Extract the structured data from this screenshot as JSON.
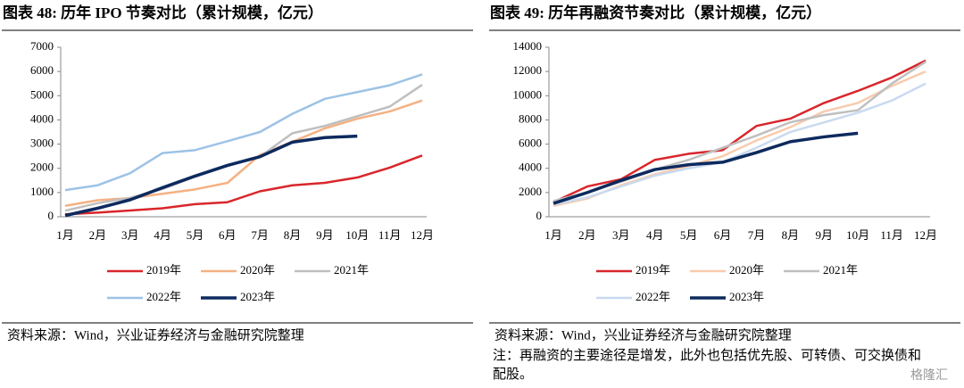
{
  "chart_data": [
    {
      "type": "line",
      "title": "图表 48:  历年 IPO 节奏对比（累计规模，亿元）",
      "categories": [
        "1月",
        "2月",
        "3月",
        "4月",
        "5月",
        "6月",
        "7月",
        "8月",
        "9月",
        "10月",
        "11月",
        "12月"
      ],
      "ylim": [
        0,
        7000
      ],
      "yticks": [
        0,
        1000,
        2000,
        3000,
        4000,
        5000,
        6000,
        7000
      ],
      "series": [
        {
          "name": "2019年",
          "color": "#d9262b",
          "values": [
            100,
            170,
            260,
            350,
            520,
            600,
            1050,
            1300,
            1400,
            1620,
            2030,
            2530
          ]
        },
        {
          "name": "2020年",
          "color": "#f4b183",
          "values": [
            450,
            680,
            770,
            950,
            1130,
            1400,
            2550,
            3100,
            3650,
            4050,
            4350,
            4800
          ]
        },
        {
          "name": "2021年",
          "color": "#bfbfbf",
          "values": [
            250,
            560,
            780,
            1150,
            1650,
            2100,
            2480,
            3450,
            3750,
            4150,
            4550,
            5450
          ]
        },
        {
          "name": "2022年",
          "color": "#9dc3e6",
          "values": [
            1100,
            1300,
            1800,
            2630,
            2750,
            3120,
            3500,
            4250,
            4870,
            5150,
            5430,
            5880
          ]
        },
        {
          "name": "2023年",
          "color": "#0d2a5e",
          "values": [
            50,
            350,
            700,
            1200,
            1680,
            2120,
            2480,
            3080,
            3270,
            3330,
            null,
            null
          ]
        }
      ],
      "source": "资料来源：Wind，兴业证券经济与金融研究院整理"
    },
    {
      "type": "line",
      "title": "图表 49:  历年再融资节奏对比（累计规模，亿元）",
      "categories": [
        "1月",
        "2月",
        "3月",
        "4月",
        "5月",
        "6月",
        "7月",
        "8月",
        "9月",
        "10月",
        "11月",
        "12月"
      ],
      "ylim": [
        0,
        14000
      ],
      "yticks": [
        0,
        2000,
        4000,
        6000,
        8000,
        10000,
        12000,
        14000
      ],
      "series": [
        {
          "name": "2019年",
          "color": "#d9262b",
          "values": [
            1200,
            2500,
            3100,
            4700,
            5200,
            5500,
            7500,
            8100,
            9400,
            10400,
            11500,
            12900
          ]
        },
        {
          "name": "2020年",
          "color": "#f8cbad",
          "values": [
            900,
            1500,
            2600,
            3500,
            4200,
            5000,
            6300,
            7400,
            8700,
            9400,
            10800,
            12000
          ]
        },
        {
          "name": "2021年",
          "color": "#bfbfbf",
          "values": [
            1300,
            2000,
            2900,
            3900,
            4700,
            5700,
            6700,
            7800,
            8400,
            8800,
            11000,
            12800
          ]
        },
        {
          "name": "2022年",
          "color": "#c9daf0",
          "values": [
            1000,
            1600,
            2500,
            3400,
            4000,
            4500,
            5700,
            7000,
            7800,
            8600,
            9600,
            11000
          ]
        },
        {
          "name": "2023年",
          "color": "#0d2a5e",
          "values": [
            1100,
            2000,
            3000,
            3900,
            4300,
            4500,
            5300,
            6200,
            6600,
            6900,
            null,
            null
          ]
        }
      ],
      "source": "资料来源：Wind，兴业证券经济与金融研究院整理",
      "note": "注：再融资的主要途径是增发，此外也包括优先股、可转债、可交换债和配股。"
    }
  ],
  "watermark": "格隆汇"
}
